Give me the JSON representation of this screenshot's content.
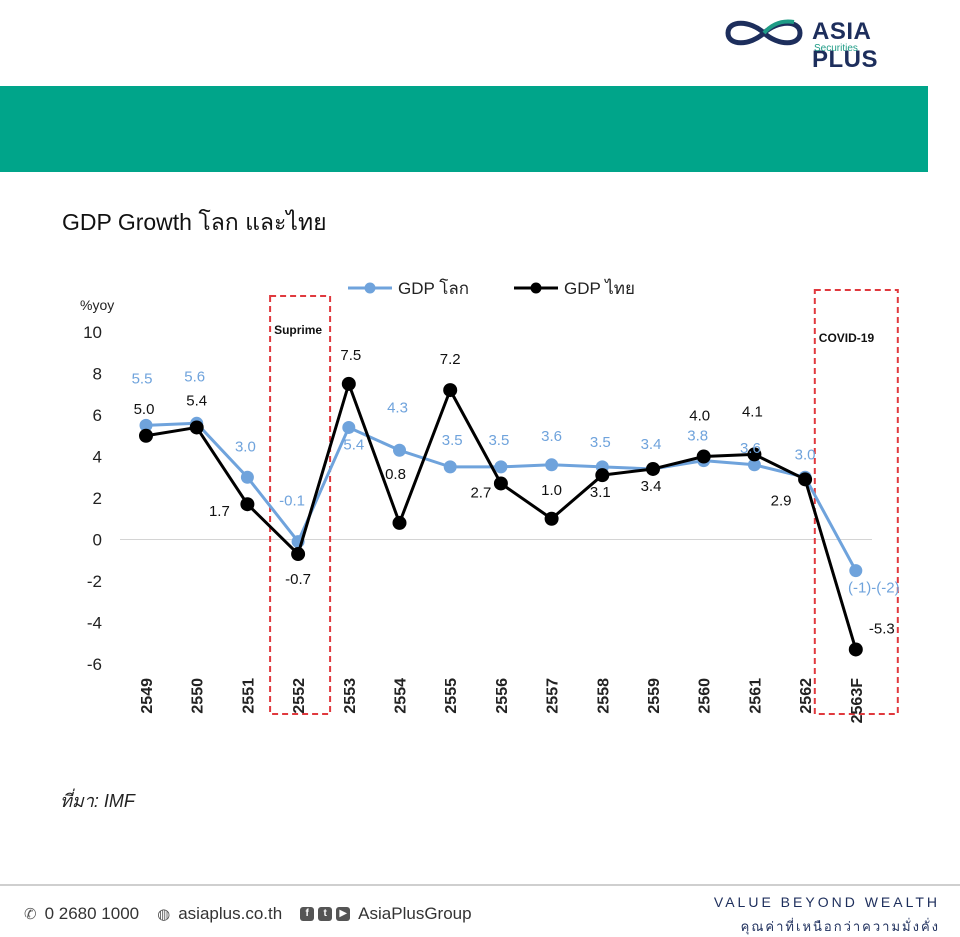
{
  "brand": {
    "name": "ASIA PLUS",
    "sub": "Securities",
    "colors": {
      "navy": "#1d2e5c",
      "teal": "#00a58a",
      "green": "#1f9c86"
    }
  },
  "header_band_color": "#00a58a",
  "title": "GDP Growth โลก และไทย",
  "source": "ที่มา: IMF",
  "footer": {
    "phone": "0 2680 1000",
    "website": "asiaplus.co.th",
    "social": "AsiaPlusGroup",
    "icons": [
      "phone-icon",
      "globe-icon",
      "facebook-icon",
      "twitter-icon",
      "youtube-icon"
    ]
  },
  "tagline": {
    "line1": "VALUE BEYOND WEALTH",
    "line2": "คุณค่าที่เหนือกว่าความมั่งคั่ง"
  },
  "chart_data": {
    "type": "line",
    "ylabel": "%yoy",
    "ylim": [
      -6,
      10
    ],
    "yticks": [
      -6,
      -4,
      -2,
      0,
      2,
      4,
      6,
      8,
      10
    ],
    "grid": false,
    "legend_position": "top",
    "categories": [
      "2549",
      "2550",
      "2551",
      "2552",
      "2553",
      "2554",
      "2555",
      "2556",
      "2557",
      "2558",
      "2559",
      "2560",
      "2561",
      "2562",
      "2563F"
    ],
    "series": [
      {
        "name": "GDP โลก",
        "color": "#6fa3dc",
        "values": [
          5.5,
          5.6,
          3.0,
          -0.1,
          5.4,
          4.3,
          3.5,
          3.5,
          3.6,
          3.5,
          3.4,
          3.8,
          3.6,
          3.0,
          -1.5
        ],
        "labels": [
          "5.5",
          "5.6",
          "3.0",
          "-0.1",
          "5.4",
          "4.3",
          "3.5",
          "3.5",
          "3.6",
          "3.5",
          "3.4",
          "3.8",
          "3.6",
          "3.0",
          "(-1)-(-2)"
        ]
      },
      {
        "name": "GDP ไทย",
        "color": "#000000",
        "values": [
          5.0,
          5.4,
          1.7,
          -0.7,
          7.5,
          0.8,
          7.2,
          2.7,
          1.0,
          3.1,
          3.4,
          4.0,
          4.1,
          2.9,
          -5.3
        ],
        "labels": [
          "5.0",
          "5.4",
          "1.7",
          "-0.7",
          "7.5",
          "0.8",
          "7.2",
          "2.7",
          "1.0",
          "3.1",
          "3.4",
          "4.0",
          "4.1",
          "2.9",
          "-5.3"
        ]
      }
    ],
    "annotations": [
      {
        "text": "Suprime",
        "category": "2552"
      },
      {
        "text": "COVID-19",
        "category": "2563F"
      }
    ]
  }
}
